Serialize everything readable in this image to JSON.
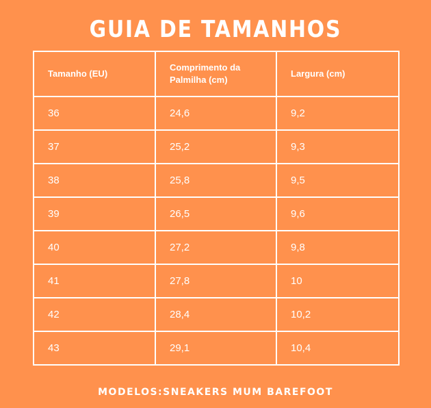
{
  "title": "GUIA DE TAMANHOS",
  "table": {
    "headers": [
      "Tamanho (EU)",
      "Comprimento da Palmilha (cm)",
      "Largura (cm)"
    ],
    "rows": [
      [
        "36",
        "24,6",
        "9,2"
      ],
      [
        "37",
        "25,2",
        "9,3"
      ],
      [
        "38",
        "25,8",
        "9,5"
      ],
      [
        "39",
        "26,5",
        "9,6"
      ],
      [
        "40",
        "27,2",
        "9,8"
      ],
      [
        "41",
        "27,8",
        "10"
      ],
      [
        "42",
        "28,4",
        "10,2"
      ],
      [
        "43",
        "29,1",
        "10,4"
      ]
    ]
  },
  "footer": "MODELOS:SNEAKERS MUM BAREFOOT",
  "colors": {
    "background": "#FF914D",
    "text": "#FFFFFF",
    "grid": "#FFFFFF"
  }
}
